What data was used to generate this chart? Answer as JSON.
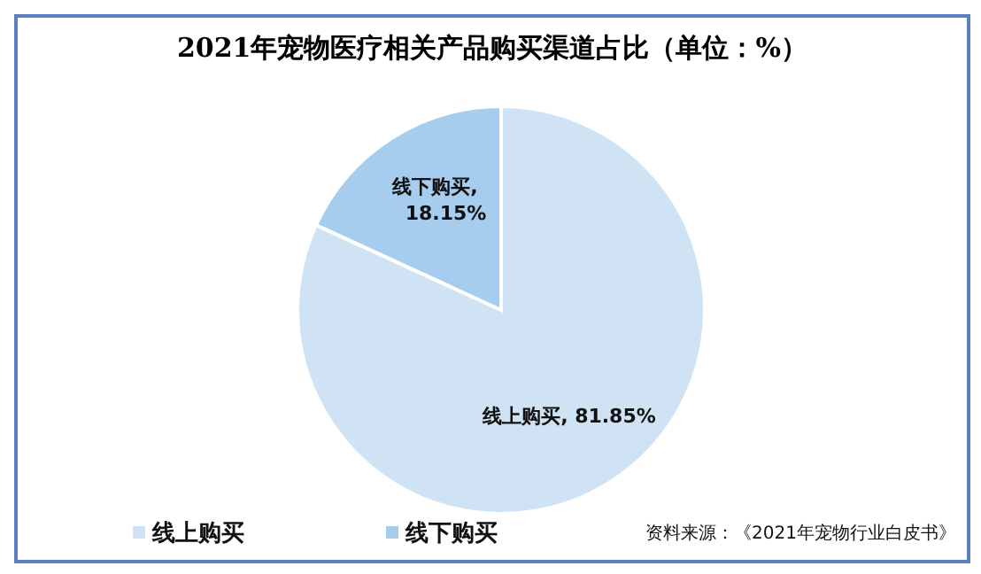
{
  "chart_data": {
    "type": "pie",
    "title": "2021年宠物医疗相关产品购买渠道占比（单位：%）",
    "categories": [
      "线上购买",
      "线下购买"
    ],
    "values": [
      81.85,
      18.15
    ],
    "colors": [
      "#cfe3f5",
      "#a6cdee"
    ],
    "value_labels": [
      "线上购买, 81.85%",
      "线下购买, 18.15%"
    ],
    "legend": "bottom left",
    "annotations": [
      "资料来源：《2021年宠物行业白皮书》"
    ]
  }
}
